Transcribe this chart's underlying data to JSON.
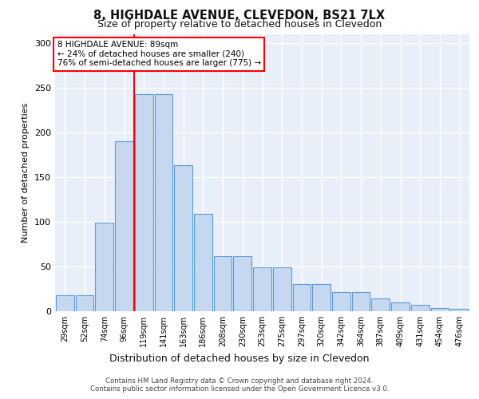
{
  "title": "8, HIGHDALE AVENUE, CLEVEDON, BS21 7LX",
  "subtitle": "Size of property relative to detached houses in Clevedon",
  "xlabel": "Distribution of detached houses by size in Clevedon",
  "ylabel": "Number of detached properties",
  "categories": [
    "29sqm",
    "52sqm",
    "74sqm",
    "96sqm",
    "119sqm",
    "141sqm",
    "163sqm",
    "186sqm",
    "208sqm",
    "230sqm",
    "253sqm",
    "275sqm",
    "297sqm",
    "320sqm",
    "342sqm",
    "364sqm",
    "387sqm",
    "409sqm",
    "431sqm",
    "454sqm",
    "476sqm"
  ],
  "values": [
    18,
    18,
    99,
    190,
    243,
    243,
    163,
    109,
    62,
    62,
    49,
    49,
    30,
    30,
    21,
    21,
    14,
    10,
    7,
    4,
    3
  ],
  "bar_color": "#c5d8f0",
  "bar_edge_color": "#5b9bd5",
  "background_color": "#e8eff9",
  "grid_color": "#ffffff",
  "red_line_x": 3.5,
  "annotation_text": "8 HIGHDALE AVENUE: 89sqm\n← 24% of detached houses are smaller (240)\n76% of semi-detached houses are larger (775) →",
  "footer_line1": "Contains HM Land Registry data © Crown copyright and database right 2024.",
  "footer_line2": "Contains public sector information licensed under the Open Government Licence v3.0.",
  "ylim": [
    0,
    310
  ],
  "yticks": [
    0,
    50,
    100,
    150,
    200,
    250,
    300
  ]
}
